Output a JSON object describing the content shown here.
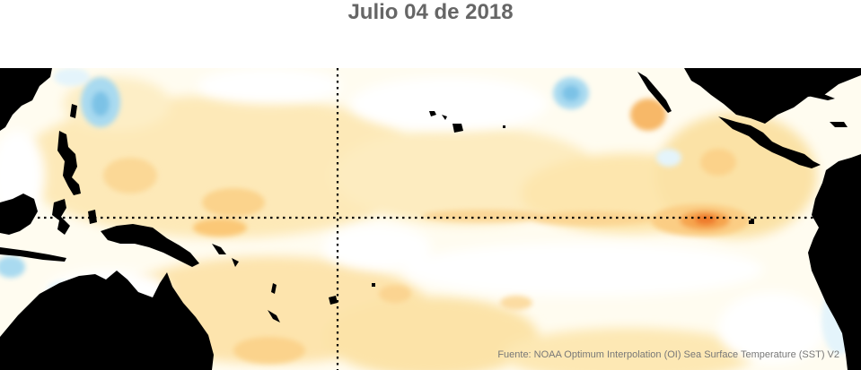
{
  "title": "Julio 04 de 2018",
  "source": "Fuente: NOAA Optimum Interpolation (OI) Sea Surface Temperature (SST) V2",
  "colors": {
    "land": "#000000",
    "warm_faint": "#fff6d6",
    "warm_light": "#fde7b1",
    "warm_mid": "#fbd08a",
    "warm_strong": "#f6a44e",
    "warm_peak": "#ee7a2c",
    "cool_light": "#e4f4fb",
    "cool_mid": "#a9daf0",
    "cool_strong": "#7cc2e6",
    "neutral": "#ffffff",
    "guide_lines": "#000000"
  },
  "legend": "none",
  "reference_lines": [
    "equator",
    "date-line"
  ]
}
